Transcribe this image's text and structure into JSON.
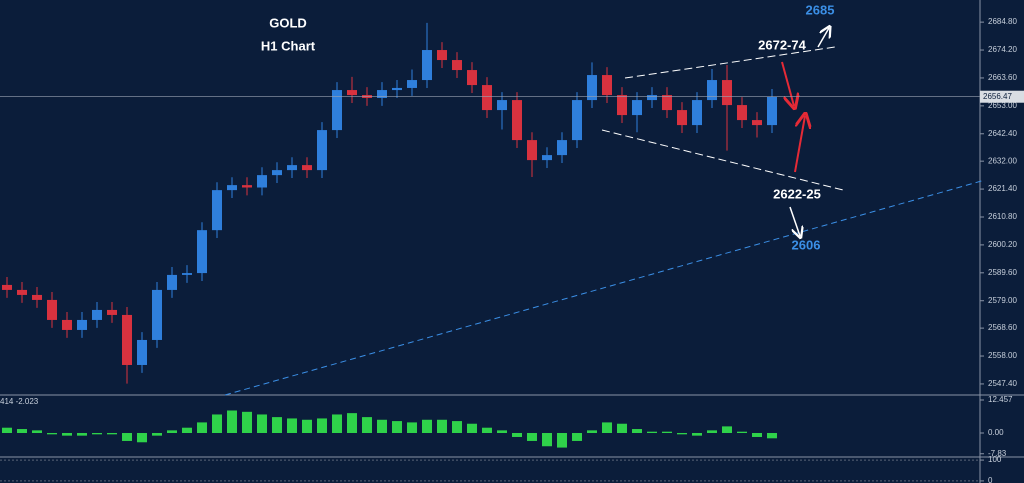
{
  "chart_data": [
    {
      "type": "candlestick",
      "title": "GOLD",
      "subtitle": "H1 Chart",
      "open": [
        2585.0,
        2583.1,
        2581.2,
        2579.3,
        2571.7,
        2567.9,
        2571.7,
        2575.5,
        2573.6,
        2554.6,
        2564.1,
        2583.1,
        2588.8,
        2589.5,
        2605.8,
        2621.0,
        2622.9,
        2622.0,
        2626.7,
        2628.6,
        2630.5,
        2628.6,
        2643.8,
        2659.0,
        2657.1,
        2656.0,
        2659.0,
        2659.8,
        2662.8,
        2674.2,
        2670.4,
        2666.6,
        2660.9,
        2651.4,
        2655.2,
        2640.0,
        2632.4,
        2634.3,
        2640.0,
        2655.2,
        2664.7,
        2657.1,
        2649.5,
        2655.2,
        2657.1,
        2651.4,
        2645.7,
        2655.2,
        2662.8,
        2653.3,
        2647.6,
        2645.7
      ],
      "high": [
        2588.0,
        2586.1,
        2584.2,
        2582.3,
        2574.7,
        2574.7,
        2578.5,
        2578.5,
        2576.6,
        2567.1,
        2586.1,
        2591.8,
        2592.5,
        2608.8,
        2624.0,
        2625.9,
        2625.9,
        2629.7,
        2631.6,
        2633.5,
        2633.5,
        2646.8,
        2662.0,
        2664.0,
        2660.1,
        2662.0,
        2662.8,
        2666.8,
        2684.5,
        2677.2,
        2673.4,
        2669.6,
        2663.9,
        2658.2,
        2658.2,
        2643.0,
        2637.3,
        2643.0,
        2658.2,
        2669.5,
        2667.7,
        2660.1,
        2658.2,
        2660.1,
        2660.1,
        2654.4,
        2658.2,
        2667.0,
        2668.5,
        2656.3,
        2650.6,
        2659.4
      ],
      "low": [
        2580.1,
        2578.2,
        2576.3,
        2568.7,
        2564.9,
        2564.9,
        2568.7,
        2570.6,
        2547.5,
        2551.6,
        2561.1,
        2580.1,
        2585.8,
        2586.5,
        2602.8,
        2618.0,
        2619.0,
        2619.0,
        2623.7,
        2625.6,
        2625.6,
        2625.6,
        2640.8,
        2654.1,
        2653.0,
        2653.0,
        2656.0,
        2656.8,
        2659.8,
        2667.4,
        2663.6,
        2657.9,
        2648.4,
        2644.0,
        2637.0,
        2626.0,
        2629.4,
        2631.3,
        2637.0,
        2652.2,
        2654.1,
        2646.5,
        2643.0,
        2652.2,
        2648.4,
        2642.7,
        2642.7,
        2652.2,
        2636.0,
        2644.6,
        2641.0,
        2642.7
      ],
      "close": [
        2583.1,
        2581.2,
        2579.3,
        2571.7,
        2567.9,
        2571.7,
        2575.5,
        2573.6,
        2554.6,
        2564.1,
        2583.1,
        2588.8,
        2589.5,
        2605.8,
        2621.0,
        2622.9,
        2622.0,
        2626.7,
        2628.6,
        2630.5,
        2628.6,
        2643.8,
        2659.0,
        2657.1,
        2656.0,
        2659.0,
        2659.8,
        2662.8,
        2674.2,
        2670.4,
        2666.6,
        2660.9,
        2651.4,
        2655.2,
        2640.0,
        2632.4,
        2634.3,
        2640.0,
        2655.2,
        2664.7,
        2657.1,
        2649.5,
        2655.2,
        2657.1,
        2651.4,
        2645.7,
        2655.2,
        2662.8,
        2653.3,
        2647.6,
        2645.7,
        2656.4
      ],
      "up_color": "#2f7fdc",
      "down_color": "#d8323f",
      "ylim": [
        2543.2,
        2693.2
      ],
      "yticks": [
        {
          "value": 2684.8,
          "label": "2684.80"
        },
        {
          "value": 2674.2,
          "label": "2674.20"
        },
        {
          "value": 2663.6,
          "label": "2663.60"
        },
        {
          "value": 2653,
          "label": "2653.00"
        },
        {
          "value": 2642.4,
          "label": "2642.40"
        },
        {
          "value": 2632,
          "label": "2632.00"
        },
        {
          "value": 2621.4,
          "label": "2621.40"
        },
        {
          "value": 2610.8,
          "label": "2610.80"
        },
        {
          "value": 2600.2,
          "label": "2600.20"
        },
        {
          "value": 2589.6,
          "label": "2589.60"
        },
        {
          "value": 2579,
          "label": "2579.00"
        },
        {
          "value": 2568.6,
          "label": "2568.60"
        },
        {
          "value": 2558,
          "label": "2558.00"
        },
        {
          "value": 2547.4,
          "label": "2547.40"
        }
      ],
      "last_price": 2656.47,
      "annotations": [
        "2685",
        "2672-74",
        "2622-25",
        "2606"
      ]
    },
    {
      "type": "bar",
      "label": "414 -2.023",
      "color": "#2fd24a",
      "values": [
        2,
        1.5,
        1,
        -0.5,
        -1,
        -1,
        -0.5,
        -0.5,
        -3,
        -3.5,
        -1,
        1,
        2,
        4,
        7,
        8.5,
        8,
        7,
        6,
        5.5,
        5,
        5.5,
        7,
        7.5,
        6,
        5,
        4.5,
        4,
        5,
        5,
        4.5,
        3.5,
        2,
        1,
        -1.5,
        -3,
        -5,
        -5.5,
        -3,
        1,
        4,
        3.5,
        1.5,
        0.5,
        0.5,
        -0.5,
        -1,
        1,
        2.5,
        0.5,
        -1.5,
        -2
      ],
      "ylim": [
        -8.68,
        13.97
      ],
      "yticks": [
        12.457,
        {
          "value": 0,
          "label": "0.00"
        },
        -7.83
      ]
    },
    {
      "type": "line",
      "ylim": [
        -10,
        110
      ],
      "yticks": [
        100,
        0
      ]
    }
  ]
}
